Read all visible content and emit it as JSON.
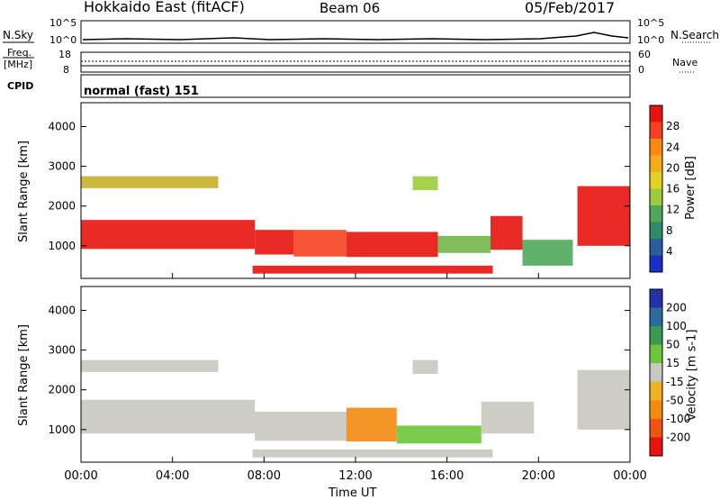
{
  "header": {
    "station": "Hokkaido East (fitACF)",
    "beam": "Beam 06",
    "date": "05/Feb/2017"
  },
  "noise_panel": {
    "left_label": "N.Sky",
    "right_label": "N.Search",
    "left_ticks": [
      "10^5",
      "10^0"
    ],
    "right_ticks": [
      "10^5",
      "10^0"
    ]
  },
  "freq_panel": {
    "left_label_1": "Freq.",
    "left_label_2": "[MHz]",
    "left_ticks": [
      "18",
      "8"
    ],
    "right_label": "Nave",
    "right_ticks": [
      "60",
      "0"
    ],
    "mode_label": "CPID",
    "mode_text": "normal (fast) 151"
  },
  "chart_data": [
    {
      "type": "heatmap",
      "name": "power",
      "ylabel": "Slant Range [km]",
      "ylim": [
        180,
        4600
      ],
      "yticks": [
        "4000",
        "3000",
        "2000",
        "1000"
      ],
      "xticks": [
        "00:00",
        "04:00",
        "08:00",
        "12:00",
        "16:00",
        "20:00",
        "00:00"
      ],
      "colorbar": {
        "label": "Power [dB]",
        "ticks": [
          "28",
          "24",
          "20",
          "16",
          "12",
          "8",
          "4"
        ],
        "colors": [
          "#e8130d",
          "#f5411f",
          "#fa8a14",
          "#f2ad18",
          "#e5d024",
          "#9ccc3a",
          "#4fa85a",
          "#2d8a6b",
          "#275e9c",
          "#1830c8"
        ]
      },
      "regions": [
        {
          "t0": 0.0,
          "t1": 7.6,
          "r0": 920,
          "r1": 1650,
          "color": "#e8130d"
        },
        {
          "t0": 0.0,
          "t1": 6.0,
          "r0": 2450,
          "r1": 2750,
          "color": "#c7b02a"
        },
        {
          "t0": 7.6,
          "t1": 9.3,
          "r0": 780,
          "r1": 1400,
          "color": "#e8130d"
        },
        {
          "t0": 9.3,
          "t1": 11.6,
          "r0": 730,
          "r1": 1400,
          "color": "#f5411f"
        },
        {
          "t0": 11.6,
          "t1": 15.6,
          "r0": 720,
          "r1": 1350,
          "color": "#e8130d"
        },
        {
          "t0": 14.5,
          "t1": 15.6,
          "r0": 2400,
          "r1": 2750,
          "color": "#9ccc3a"
        },
        {
          "t0": 15.6,
          "t1": 17.9,
          "r0": 820,
          "r1": 1250,
          "color": "#6fb64a"
        },
        {
          "t0": 17.9,
          "t1": 19.3,
          "r0": 900,
          "r1": 1750,
          "color": "#e8130d"
        },
        {
          "t0": 19.3,
          "t1": 21.5,
          "r0": 500,
          "r1": 1150,
          "color": "#4fa85a"
        },
        {
          "t0": 21.7,
          "t1": 24.0,
          "r0": 1000,
          "r1": 2500,
          "color": "#e8130d"
        },
        {
          "t0": 7.5,
          "t1": 18.0,
          "r0": 300,
          "r1": 500,
          "color": "#e8130d"
        }
      ]
    },
    {
      "type": "heatmap",
      "name": "velocity",
      "ylabel": "Slant Range [km]",
      "ylim": [
        180,
        4600
      ],
      "yticks": [
        "4000",
        "3000",
        "2000",
        "1000"
      ],
      "xticks": [
        "00:00",
        "04:00",
        "08:00",
        "12:00",
        "16:00",
        "20:00",
        "00:00"
      ],
      "xlabel": "Time UT",
      "colorbar": {
        "label": "Velocity [m s-1]",
        "ticks": [
          "200",
          "100",
          "50",
          "15",
          "-15",
          "-50",
          "-100",
          "-200"
        ],
        "colors": [
          "#2233aa",
          "#2d6b9e",
          "#3b9a52",
          "#6cc63a",
          "#c8c8c0",
          "#f0b020",
          "#f58a10",
          "#f05510",
          "#e8130d"
        ]
      },
      "regions": [
        {
          "t0": 0.0,
          "t1": 7.6,
          "r0": 900,
          "r1": 1750,
          "color": "#c8c8c0"
        },
        {
          "t0": 0.0,
          "t1": 6.0,
          "r0": 2450,
          "r1": 2750,
          "color": "#c8c8c0"
        },
        {
          "t0": 7.6,
          "t1": 11.6,
          "r0": 720,
          "r1": 1450,
          "color": "#c8c8c0"
        },
        {
          "t0": 11.6,
          "t1": 13.8,
          "r0": 700,
          "r1": 1550,
          "color": "#f58a10"
        },
        {
          "t0": 13.8,
          "t1": 17.5,
          "r0": 650,
          "r1": 1100,
          "color": "#6cc63a"
        },
        {
          "t0": 17.5,
          "t1": 19.8,
          "r0": 900,
          "r1": 1700,
          "color": "#c8c8c0"
        },
        {
          "t0": 21.7,
          "t1": 24.0,
          "r0": 1000,
          "r1": 2500,
          "color": "#c8c8c0"
        },
        {
          "t0": 14.5,
          "t1": 15.6,
          "r0": 2400,
          "r1": 2750,
          "color": "#c8c8c0"
        },
        {
          "t0": 7.5,
          "t1": 18.0,
          "r0": 300,
          "r1": 500,
          "color": "#c8c8c0"
        }
      ]
    }
  ]
}
